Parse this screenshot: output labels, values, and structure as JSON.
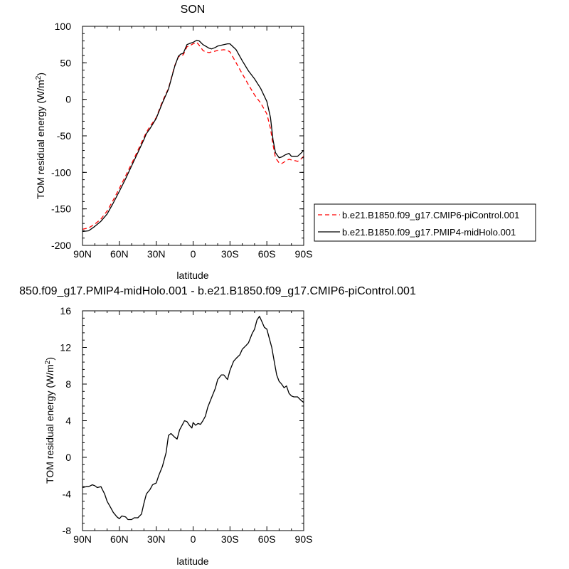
{
  "chart_data": [
    {
      "type": "line",
      "title": "SON",
      "xlabel": "latitude",
      "ylabel": "TOM residual energy (W/m²)",
      "ylabel_base": "TOM residual energy (W/m",
      "ylabel_sup": "2",
      "ylabel_end": ")",
      "xlim": [
        90,
        -90
      ],
      "ylim": [
        -200,
        100
      ],
      "xticks": [
        90,
        60,
        30,
        0,
        -30,
        -60,
        -90
      ],
      "xtick_labels": [
        "90N",
        "60N",
        "30N",
        "0",
        "30S",
        "60S",
        "90S"
      ],
      "yticks": [
        100,
        50,
        0,
        -50,
        -100,
        -150,
        -200
      ],
      "ytick_labels": [
        "100",
        "50",
        "0",
        "-50",
        "-100",
        "-150",
        "-200"
      ],
      "legend": "right-outside",
      "series": [
        {
          "name": "b.e21.B1850.f09_g17.CMIP6-piControl.001",
          "color": "#ff0000",
          "dash": "dashed",
          "x": [
            90,
            85,
            80,
            75,
            70,
            65,
            60,
            55,
            50,
            45,
            40,
            38,
            35,
            30,
            25,
            20,
            15,
            12,
            10,
            8,
            5,
            2,
            0,
            -3,
            -5,
            -8,
            -10,
            -13,
            -15,
            -18,
            -20,
            -25,
            -28,
            -30,
            -35,
            -40,
            -45,
            -50,
            -55,
            -60,
            -63,
            -65,
            -67,
            -70,
            -72,
            -75,
            -78,
            -80,
            -83,
            -85,
            -87,
            -90
          ],
          "y": [
            -178,
            -176,
            -171,
            -164,
            -153,
            -138,
            -122,
            -105,
            -88,
            -70,
            -52,
            -45,
            -37,
            -25,
            -3,
            15,
            46,
            58,
            60,
            61,
            72,
            74,
            76,
            78,
            74,
            67,
            65,
            64,
            65,
            66,
            67,
            68,
            67,
            65,
            50,
            35,
            20,
            6,
            -5,
            -20,
            -40,
            -62,
            -80,
            -87,
            -88,
            -85,
            -82,
            -83,
            -84,
            -85,
            -83,
            -78
          ]
        },
        {
          "name": "b.e21.B1850.f09_g17.PMIP4-midHolo.001",
          "color": "#000000",
          "dash": "solid",
          "x": [
            90,
            85,
            80,
            75,
            70,
            65,
            60,
            55,
            50,
            45,
            40,
            38,
            35,
            30,
            25,
            20,
            15,
            12,
            10,
            8,
            5,
            2,
            0,
            -3,
            -5,
            -8,
            -10,
            -13,
            -15,
            -18,
            -20,
            -25,
            -28,
            -30,
            -35,
            -40,
            -45,
            -50,
            -55,
            -60,
            -63,
            -65,
            -67,
            -70,
            -72,
            -75,
            -78,
            -80,
            -83,
            -85,
            -87,
            -90
          ],
          "y": [
            -181,
            -180,
            -174,
            -167,
            -157,
            -142,
            -126,
            -109,
            -91,
            -73,
            -55,
            -47,
            -40,
            -26,
            -5,
            14,
            45,
            59,
            62,
            63,
            75,
            77,
            78,
            81,
            80,
            75,
            73,
            70,
            69,
            71,
            73,
            75,
            76,
            76,
            68,
            53,
            39,
            28,
            15,
            -3,
            -25,
            -55,
            -73,
            -80,
            -79,
            -76,
            -74,
            -78,
            -78,
            -78,
            -75,
            -70
          ]
        }
      ]
    },
    {
      "type": "line",
      "title": "850.f09_g17.PMIP4-midHolo.001 - b.e21.B1850.f09_g17.CMIP6-piControl.001",
      "xlabel": "latitude",
      "ylabel": "TOM residual energy (W/m²)",
      "ylabel_base": "TOM residual energy (W/m",
      "ylabel_sup": "2",
      "ylabel_end": ")",
      "xlim": [
        90,
        -90
      ],
      "ylim": [
        -8,
        16
      ],
      "xticks": [
        90,
        60,
        30,
        0,
        -30,
        -60,
        -90
      ],
      "xtick_labels": [
        "90N",
        "60N",
        "30N",
        "0",
        "30S",
        "60S",
        "90S"
      ],
      "yticks": [
        16,
        12,
        8,
        4,
        0,
        -4,
        -8
      ],
      "ytick_labels": [
        "16",
        "12",
        "8",
        "4",
        "0",
        "-4",
        "-8"
      ],
      "series": [
        {
          "color": "#000000",
          "dash": "solid",
          "x": [
            90,
            87,
            85,
            82,
            80,
            78,
            75,
            72,
            70,
            67,
            65,
            62,
            60,
            58,
            55,
            53,
            50,
            48,
            45,
            42,
            40,
            38,
            35,
            33,
            30,
            28,
            25,
            22,
            20,
            18,
            15,
            13,
            11,
            9,
            7,
            5,
            3,
            1,
            0,
            -2,
            -4,
            -6,
            -8,
            -10,
            -12,
            -15,
            -18,
            -20,
            -23,
            -25,
            -28,
            -30,
            -33,
            -35,
            -38,
            -40,
            -43,
            -45,
            -48,
            -50,
            -52,
            -54,
            -56,
            -58,
            -60,
            -62,
            -64,
            -66,
            -68,
            -70,
            -72,
            -74,
            -76,
            -78,
            -80,
            -82,
            -85,
            -88,
            -90
          ],
          "y": [
            -3.3,
            -3.2,
            -3.2,
            -3.0,
            -3.1,
            -3.3,
            -3.2,
            -4.0,
            -4.8,
            -5.5,
            -6.0,
            -6.5,
            -6.7,
            -6.4,
            -6.5,
            -6.8,
            -6.8,
            -6.6,
            -6.6,
            -6.2,
            -5.0,
            -4.0,
            -3.5,
            -3.0,
            -2.8,
            -2.0,
            -1.0,
            0.5,
            2.4,
            2.6,
            2.2,
            2.0,
            3.0,
            3.5,
            4.0,
            3.9,
            3.5,
            3.2,
            3.8,
            3.5,
            3.7,
            3.6,
            4.0,
            4.5,
            5.5,
            6.5,
            7.5,
            8.5,
            9.0,
            9.0,
            8.5,
            9.5,
            10.5,
            10.8,
            11.2,
            11.8,
            12.2,
            12.5,
            13.5,
            14.0,
            15.0,
            15.4,
            14.8,
            14.2,
            14.0,
            13.0,
            12.0,
            10.5,
            9.0,
            8.3,
            8.0,
            7.6,
            7.8,
            7.0,
            6.7,
            6.6,
            6.6,
            6.2,
            6.0
          ]
        }
      ]
    }
  ]
}
